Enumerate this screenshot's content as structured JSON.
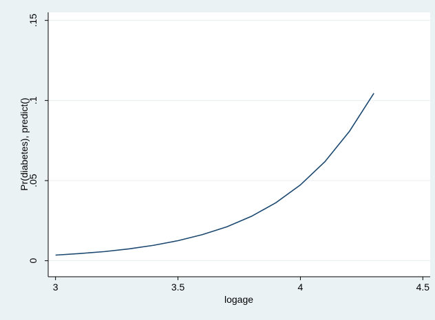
{
  "chart_data": {
    "type": "line",
    "title": "",
    "xlabel": "logage",
    "ylabel": "Pr(diabetes), predict()",
    "xlim": [
      2.97,
      4.53
    ],
    "ylim": [
      -0.01,
      0.155
    ],
    "x_ticks": [
      3,
      3.5,
      4,
      4.5
    ],
    "x_tick_labels": [
      "3",
      "3.5",
      "4",
      "4.5"
    ],
    "y_ticks": [
      0,
      0.05,
      0.1,
      0.15
    ],
    "y_tick_labels": [
      "0",
      ".05",
      ".1",
      ".15"
    ],
    "grid": "horizontal",
    "series": [
      {
        "color": "#1a476f",
        "x": [
          3.0,
          3.1,
          3.2,
          3.3,
          3.4,
          3.5,
          3.6,
          3.7,
          3.8,
          3.9,
          4.0,
          4.1,
          4.2,
          4.3
        ],
        "y": [
          0.0035,
          0.0045,
          0.0057,
          0.0074,
          0.0096,
          0.0125,
          0.0163,
          0.0212,
          0.0277,
          0.0362,
          0.0473,
          0.0618,
          0.0807,
          0.1045
        ]
      }
    ],
    "colors": {
      "background": "#eaf2f3",
      "plot_area": "#ffffff",
      "gridline": "#e8eef0",
      "line": "#1a476f"
    }
  }
}
